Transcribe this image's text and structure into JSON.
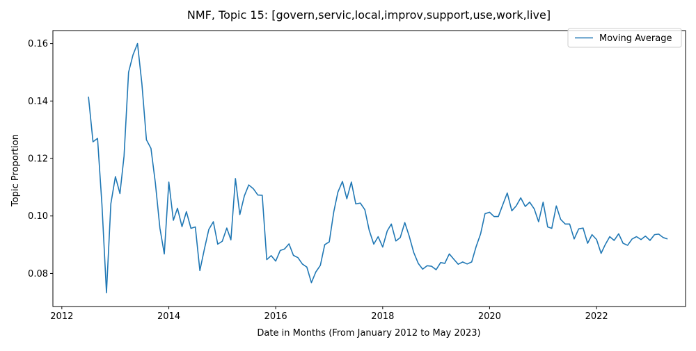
{
  "chart_data": {
    "type": "line",
    "title": "NMF, Topic 15: [govern,servic,local,improv,support,use,work,live]",
    "xlabel": "Date in Months (From January 2012 to May 2023)",
    "ylabel": "Topic Proportion",
    "xlim": [
      "2011-11-01",
      "2023-09-01"
    ],
    "ylim": [
      0.0685,
      0.1645
    ],
    "x_ticks": [
      {
        "value": "2012-01-01",
        "label": "2012"
      },
      {
        "value": "2014-01-01",
        "label": "2014"
      },
      {
        "value": "2016-01-01",
        "label": "2016"
      },
      {
        "value": "2018-01-01",
        "label": "2018"
      },
      {
        "value": "2020-01-01",
        "label": "2020"
      },
      {
        "value": "2022-01-01",
        "label": "2022"
      }
    ],
    "y_ticks": [
      {
        "value": 0.08,
        "label": "0.08"
      },
      {
        "value": 0.1,
        "label": "0.10"
      },
      {
        "value": 0.12,
        "label": "0.12"
      },
      {
        "value": 0.14,
        "label": "0.14"
      },
      {
        "value": 0.16,
        "label": "0.16"
      }
    ],
    "grid": false,
    "legend": {
      "placement": "top-right",
      "entries": [
        "Moving Average"
      ]
    },
    "series": [
      {
        "name": "Moving Average",
        "color": "#1f77b4",
        "x": [
          "2012-07",
          "2012-08",
          "2012-09",
          "2012-10",
          "2012-11",
          "2012-12",
          "2013-01",
          "2013-02",
          "2013-03",
          "2013-04",
          "2013-05",
          "2013-06",
          "2013-07",
          "2013-08",
          "2013-09",
          "2013-10",
          "2013-11",
          "2013-12",
          "2014-01",
          "2014-02",
          "2014-03",
          "2014-04",
          "2014-05",
          "2014-06",
          "2014-07",
          "2014-08",
          "2014-09",
          "2014-10",
          "2014-11",
          "2014-12",
          "2015-01",
          "2015-02",
          "2015-03",
          "2015-04",
          "2015-05",
          "2015-06",
          "2015-07",
          "2015-08",
          "2015-09",
          "2015-10",
          "2015-11",
          "2015-12",
          "2016-01",
          "2016-02",
          "2016-03",
          "2016-04",
          "2016-05",
          "2016-06",
          "2016-07",
          "2016-08",
          "2016-09",
          "2016-10",
          "2016-11",
          "2016-12",
          "2017-01",
          "2017-02",
          "2017-03",
          "2017-04",
          "2017-05",
          "2017-06",
          "2017-07",
          "2017-08",
          "2017-09",
          "2017-10",
          "2017-11",
          "2017-12",
          "2018-01",
          "2018-02",
          "2018-03",
          "2018-04",
          "2018-05",
          "2018-06",
          "2018-07",
          "2018-08",
          "2018-09",
          "2018-10",
          "2018-11",
          "2018-12",
          "2019-01",
          "2019-02",
          "2019-03",
          "2019-04",
          "2019-05",
          "2019-06",
          "2019-07",
          "2019-08",
          "2019-09",
          "2019-10",
          "2019-11",
          "2019-12",
          "2020-01",
          "2020-02",
          "2020-03",
          "2020-04",
          "2020-05",
          "2020-06",
          "2020-07",
          "2020-08",
          "2020-09",
          "2020-10",
          "2020-11",
          "2020-12",
          "2021-01",
          "2021-02",
          "2021-03",
          "2021-04",
          "2021-05",
          "2021-06",
          "2021-07",
          "2021-08",
          "2021-09",
          "2021-10",
          "2021-11",
          "2021-12",
          "2022-01",
          "2022-02",
          "2022-03",
          "2022-04",
          "2022-05",
          "2022-06",
          "2022-07",
          "2022-08",
          "2022-09",
          "2022-10",
          "2022-11",
          "2022-12",
          "2023-01",
          "2023-02",
          "2023-03",
          "2023-04",
          "2023-05"
        ],
        "y": [
          0.1415,
          0.1258,
          0.127,
          0.104,
          0.0733,
          0.1043,
          0.1137,
          0.1078,
          0.1208,
          0.15,
          0.156,
          0.16,
          0.146,
          0.1265,
          0.1235,
          0.1115,
          0.0958,
          0.0868,
          0.1118,
          0.0985,
          0.1027,
          0.0963,
          0.1015,
          0.0957,
          0.0962,
          0.081,
          0.0885,
          0.0953,
          0.098,
          0.0902,
          0.0912,
          0.0958,
          0.0917,
          0.113,
          0.1005,
          0.107,
          0.1108,
          0.1095,
          0.1073,
          0.1072,
          0.0848,
          0.0862,
          0.0843,
          0.088,
          0.0885,
          0.0903,
          0.0863,
          0.0855,
          0.0833,
          0.0822,
          0.0768,
          0.0805,
          0.0828,
          0.09,
          0.091,
          0.1015,
          0.1083,
          0.112,
          0.106,
          0.1118,
          0.1042,
          0.1045,
          0.1022,
          0.095,
          0.0902,
          0.0928,
          0.0892,
          0.0948,
          0.0972,
          0.0913,
          0.0925,
          0.0977,
          0.093,
          0.0873,
          0.0835,
          0.0815,
          0.0827,
          0.0825,
          0.0813,
          0.0838,
          0.0835,
          0.0868,
          0.085,
          0.0832,
          0.084,
          0.0833,
          0.084,
          0.0893,
          0.0938,
          0.1008,
          0.1013,
          0.0998,
          0.0998,
          0.104,
          0.108,
          0.1018,
          0.1035,
          0.1063,
          0.1033,
          0.1048,
          0.1025,
          0.098,
          0.1048,
          0.0962,
          0.0957,
          0.1035,
          0.0988,
          0.0972,
          0.0972,
          0.092,
          0.0955,
          0.0958,
          0.0905,
          0.0935,
          0.0918,
          0.087,
          0.09,
          0.0928,
          0.0915,
          0.0938,
          0.0905,
          0.0898,
          0.092,
          0.0928,
          0.0918,
          0.093,
          0.0915,
          0.0935,
          0.0937,
          0.0925,
          0.092
        ]
      }
    ]
  }
}
